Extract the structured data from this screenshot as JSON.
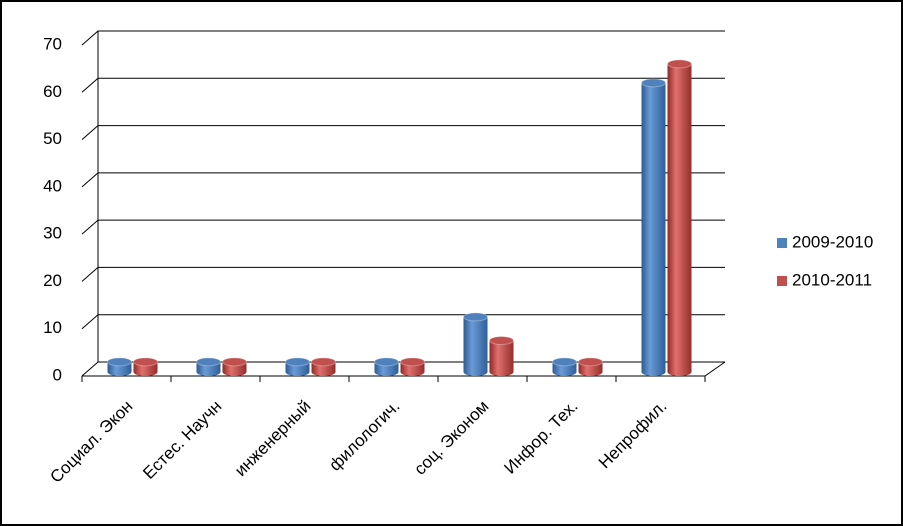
{
  "chart_data": {
    "type": "bar3d",
    "categories": [
      "Социал. Экон",
      "Естес. Научн",
      "инженерный",
      "филологич.",
      "соц. Эконом",
      "Инфор. Тех.",
      "Непрофил."
    ],
    "series": [
      {
        "name": "2009-2010",
        "color": "#4f81bd",
        "values": [
          3,
          3,
          3,
          3,
          12.5,
          3,
          62
        ]
      },
      {
        "name": "2010-2011",
        "color": "#c0504d",
        "values": [
          3,
          3,
          3,
          3,
          7.5,
          3,
          66
        ]
      }
    ],
    "ylim": [
      0,
      70
    ],
    "yticks": [
      0,
      10,
      20,
      30,
      40,
      50,
      60,
      70
    ],
    "grid": true,
    "legend": "right"
  }
}
